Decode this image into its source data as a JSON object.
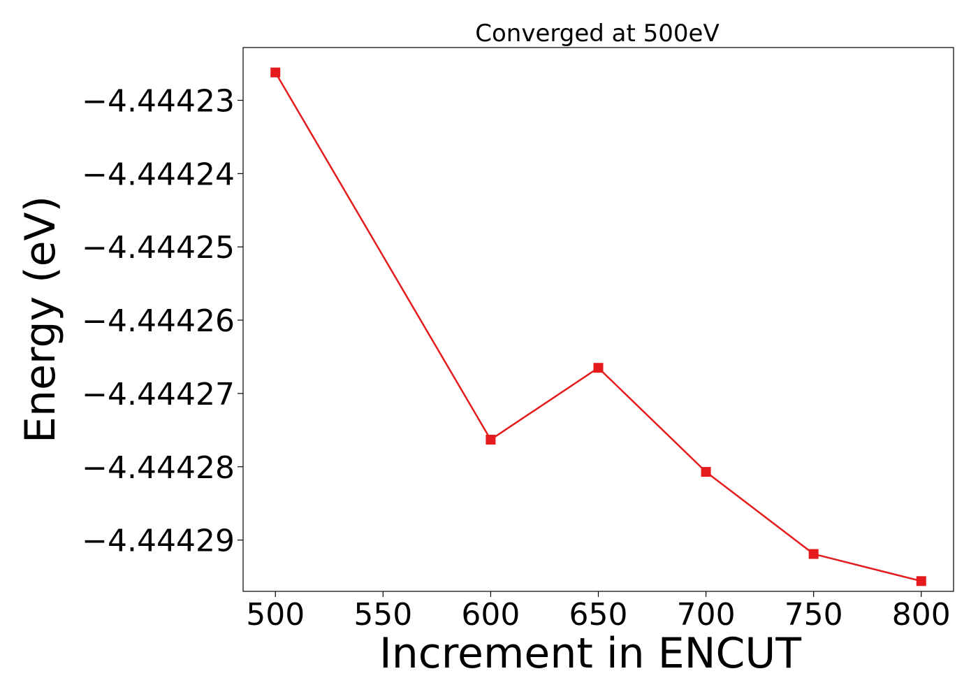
{
  "chart_data": {
    "type": "line",
    "title": "Converged at 500eV",
    "xlabel": "Increment in ENCUT",
    "ylabel": "Energy (eV)",
    "xlim": [
      485,
      815
    ],
    "ylim": [
      -4.444297,
      -4.4442228
    ],
    "x_ticks": [
      500,
      550,
      600,
      650,
      700,
      750,
      800
    ],
    "y_ticks": [
      -4.44423,
      -4.44424,
      -4.44425,
      -4.44426,
      -4.44427,
      -4.44428,
      -4.44429
    ],
    "y_tick_labels": [
      "−4.44423",
      "−4.44424",
      "−4.44425",
      "−4.44426",
      "−4.44427",
      "−4.44428",
      "−4.44429"
    ],
    "grid": false,
    "series": [
      {
        "x": [
          500,
          600,
          650,
          700,
          750,
          800
        ],
        "y": [
          -4.4442262,
          -4.4442763,
          -4.4442665,
          -4.4442807,
          -4.4442919,
          -4.4442956
        ],
        "color": "#e41a1c",
        "marker": "square"
      }
    ]
  }
}
